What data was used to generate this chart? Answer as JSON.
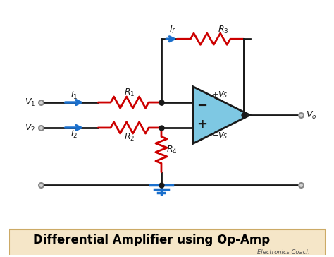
{
  "title": "Differential Amplifier using Op-Amp",
  "subtitle": "Electronics Coach",
  "bg_color": "#ffffff",
  "title_bg": "#f5e6c8",
  "title_color": "#000000",
  "wire_color": "#1a1a1a",
  "resistor_color": "#cc0000",
  "arrow_color": "#1a6fcc",
  "opamp_fill": "#7ec8e3",
  "opamp_edge": "#1a1a1a",
  "ground_color": "#1a6fcc",
  "node_color": "#1a1a1a",
  "terminal_color": "#888888"
}
